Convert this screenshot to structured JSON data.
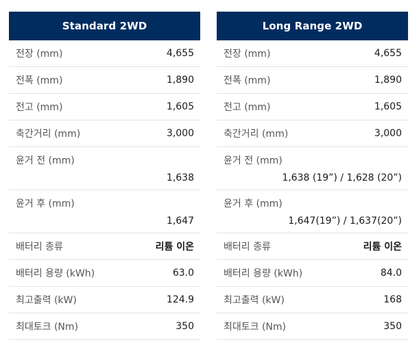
{
  "tables": [
    {
      "header": "Standard 2WD",
      "rows": [
        {
          "label": "전장 (mm)",
          "value": "4,655"
        },
        {
          "label": "전폭 (mm)",
          "value": "1,890"
        },
        {
          "label": "전고 (mm)",
          "value": "1,605"
        },
        {
          "label": "축간거리 (mm)",
          "value": "3,000"
        },
        {
          "label": "윤거 전 (mm)",
          "value": "1,638"
        },
        {
          "label": "윤거 후 (mm)",
          "value": "1,647"
        },
        {
          "label": "배터리 종류",
          "value": "리튬 이온"
        },
        {
          "label": "배터리 용량 (kWh)",
          "value": "63.0"
        },
        {
          "label": "최고출력 (kW)",
          "value": "124.9"
        },
        {
          "label": "최대토크 (Nm)",
          "value": "350"
        }
      ]
    },
    {
      "header": "Long Range 2WD",
      "rows": [
        {
          "label": "전장 (mm)",
          "value": "4,655"
        },
        {
          "label": "전폭 (mm)",
          "value": "1,890"
        },
        {
          "label": "전고 (mm)",
          "value": "1,605"
        },
        {
          "label": "축간거리 (mm)",
          "value": "3,000"
        },
        {
          "label": "윤거 전 (mm)",
          "value": "1,638 (19”) / 1,628 (20”)"
        },
        {
          "label": "윤거 후 (mm)",
          "value": "1,647(19”) / 1,637(20”)"
        },
        {
          "label": "배터리 종류",
          "value": "리튬 이온"
        },
        {
          "label": "배터리 용량 (kWh)",
          "value": "84.0"
        },
        {
          "label": "최고출력 (kW)",
          "value": "168"
        },
        {
          "label": "최대토크 (Nm)",
          "value": "350"
        }
      ]
    }
  ]
}
